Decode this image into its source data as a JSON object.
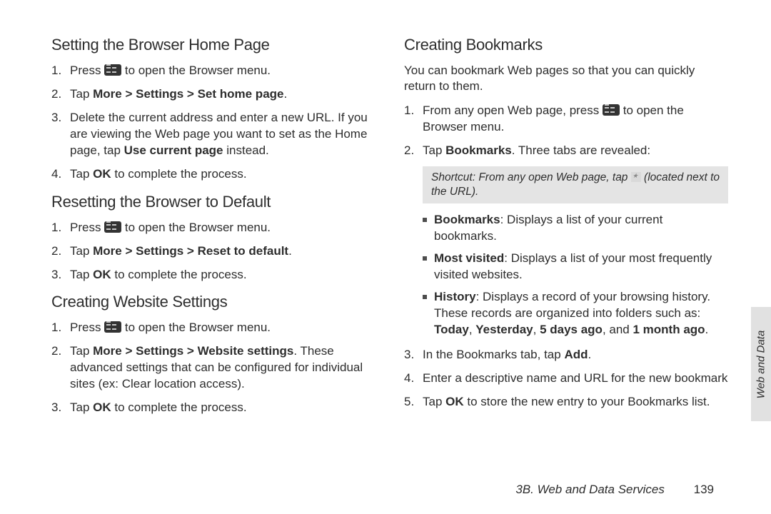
{
  "left": {
    "s1": {
      "title": "Setting the Browser Home Page",
      "i1a": "Press ",
      "i1b": " to open the Browser menu.",
      "i2a": "Tap ",
      "i2b": "More > Settings > Set home page",
      "i2c": ".",
      "i3a": "Delete the current address and enter a new URL. If you are viewing the Web page you want to set as the Home page, tap ",
      "i3b": "Use current page",
      "i3c": " instead.",
      "i4a": "Tap ",
      "i4b": "OK",
      "i4c": " to complete the process."
    },
    "s2": {
      "title": "Resetting the Browser to Default",
      "i1a": "Press ",
      "i1b": " to open the Browser menu.",
      "i2a": "Tap ",
      "i2b": "More > Settings > Reset to default",
      "i2c": ".",
      "i3a": "Tap ",
      "i3b": "OK",
      "i3c": " to complete the process."
    },
    "s3": {
      "title": "Creating Website Settings",
      "i1a": "Press ",
      "i1b": " to open the Browser menu.",
      "i2a": "Tap ",
      "i2b": "More > Settings > Website settings",
      "i2c": ". These advanced settings that can be configured for individual sites (ex: Clear location access).",
      "i3a": "Tap ",
      "i3b": "OK",
      "i3c": " to complete the process."
    }
  },
  "right": {
    "title": "Creating Bookmarks",
    "intro": "You can bookmark Web pages so that you can quickly return to them.",
    "i1a": "From any open Web page, press ",
    "i1b": " to open the Browser menu.",
    "i2a": "Tap ",
    "i2b": "Bookmarks",
    "i2c": ". Three tabs are revealed:",
    "shortcut_label": "Shortcut:",
    "shortcut_a": " From any open Web page, tap ",
    "shortcut_b": " (located next to the URL).",
    "b1a": "Bookmarks",
    "b1b": ": Displays a list of your current bookmarks.",
    "b2a": "Most visited",
    "b2b": ": Displays a list of your most frequently visited websites.",
    "b3a": "History",
    "b3b": ": Displays a record of your browsing history. These records are organized into folders such as: ",
    "b3c": "Today",
    "b3d": ", ",
    "b3e": "Yesterday",
    "b3f": ", ",
    "b3g": "5 days ago",
    "b3h": ", and ",
    "b3i": "1 month ago",
    "b3j": ".",
    "i3a": "In the Bookmarks tab, tap ",
    "i3b": "Add",
    "i3c": ".",
    "i4": "Enter a descriptive name and URL for the new bookmark",
    "i5a": "Tap ",
    "i5b": "OK",
    "i5c": " to store the new entry to your Bookmarks list."
  },
  "sidetab": "Web and Data",
  "footer_section": "3B. Web and Data Services",
  "footer_page": "139"
}
